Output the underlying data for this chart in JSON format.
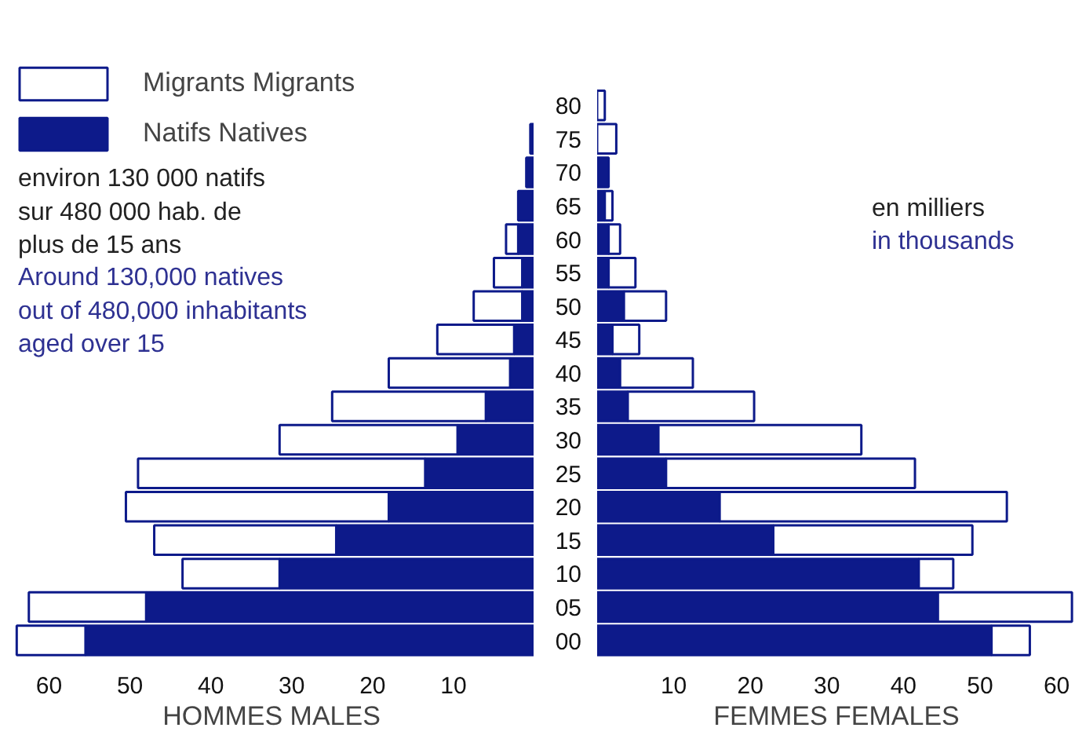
{
  "chart_data": [
    {
      "type": "bar",
      "orientation": "horizontal",
      "stacked": true,
      "xlabel": "HOMMES MALES",
      "categories": [
        "80",
        "75",
        "70",
        "65",
        "60",
        "55",
        "50",
        "45",
        "40",
        "35",
        "30",
        "25",
        "20",
        "15",
        "10",
        "05",
        "00"
      ],
      "series": [
        {
          "name": "Natifs Natives",
          "color": "#0d1a8a",
          "values": [
            0,
            0.5,
            1,
            2,
            2,
            1.5,
            1.5,
            2.5,
            3,
            6,
            9.5,
            13.5,
            18,
            24.5,
            31.5,
            48,
            55.5
          ]
        },
        {
          "name": "Migrants Migrants",
          "color": "#ffffff",
          "values": [
            0,
            0,
            0,
            0,
            1.5,
            3.5,
            6,
            9.5,
            15,
            19,
            22,
            35.5,
            32.5,
            22.5,
            12,
            14.5,
            8.5
          ]
        }
      ],
      "xlim": [
        65,
        0
      ],
      "xticks": [
        60,
        50,
        40,
        30,
        20,
        10
      ],
      "grid": false,
      "legend": "top left",
      "tick_labels": "x",
      "annotations": [
        "environ 130 000 natifs\nsur 480 000 hab. de\nplus de 15 ans",
        "Around 130,000 natives\nout of 480,000 inhabitants\naged over 15"
      ]
    },
    {
      "type": "bar",
      "orientation": "horizontal",
      "stacked": true,
      "xlabel": "FEMMES FEMALES",
      "categories": [
        "80",
        "75",
        "70",
        "65",
        "60",
        "55",
        "50",
        "45",
        "40",
        "35",
        "30",
        "25",
        "20",
        "15",
        "10",
        "05",
        "00"
      ],
      "series": [
        {
          "color": "#0d1a8a",
          "values": [
            0,
            0,
            1.5,
            1,
            1.5,
            1.5,
            3.5,
            2,
            3,
            4,
            8,
            9,
            16,
            23,
            42,
            44.5,
            51.5
          ]
        },
        {
          "color": "#ffffff",
          "values": [
            1,
            2.5,
            0,
            1,
            1.5,
            3.5,
            5.5,
            3.5,
            9.5,
            16.5,
            26.5,
            32.5,
            37.5,
            26,
            4.5,
            17.5,
            5
          ]
        }
      ],
      "xlim": [
        0,
        62.5
      ],
      "xticks": [
        10,
        20,
        30,
        40,
        50,
        60
      ],
      "grid": false,
      "annotations": [
        "en milliers",
        "in thousands"
      ]
    }
  ]
}
